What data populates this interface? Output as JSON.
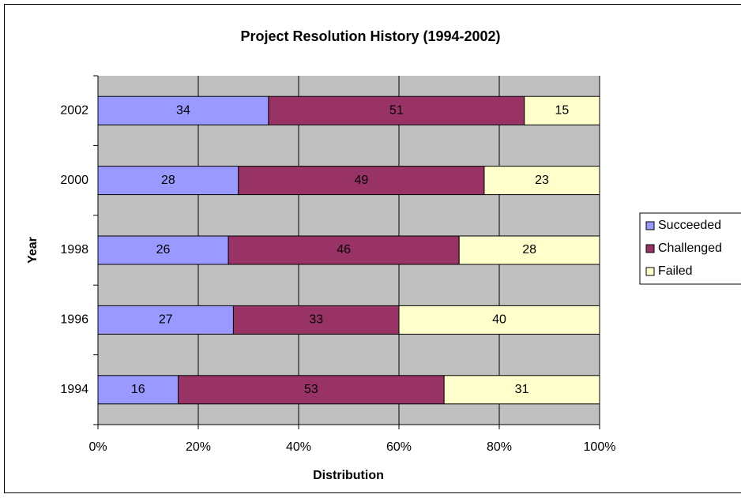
{
  "chart_data": {
    "type": "stacked-bar-horizontal",
    "title": "Project Resolution History (1994-2002)",
    "x_label": "Distribution",
    "y_label": "Year",
    "categories": [
      "1994",
      "1996",
      "1998",
      "2000",
      "2002"
    ],
    "series": [
      {
        "name": "Succeeded",
        "color": "#9999ff",
        "values": [
          16,
          27,
          26,
          28,
          34
        ]
      },
      {
        "name": "Challenged",
        "color": "#993366",
        "values": [
          53,
          33,
          46,
          49,
          51
        ]
      },
      {
        "name": "Failed",
        "color": "#ffffcc",
        "values": [
          31,
          40,
          28,
          23,
          15
        ]
      }
    ],
    "xlim": [
      0,
      100
    ],
    "xticks": [
      {
        "value": 0,
        "label": "0%"
      },
      {
        "value": 20,
        "label": "20%"
      },
      {
        "value": 40,
        "label": "40%"
      },
      {
        "value": 60,
        "label": "60%"
      },
      {
        "value": 80,
        "label": "80%"
      },
      {
        "value": 100,
        "label": "100%"
      }
    ],
    "grid": true,
    "legend": "right",
    "background": "#c0c0c0"
  }
}
